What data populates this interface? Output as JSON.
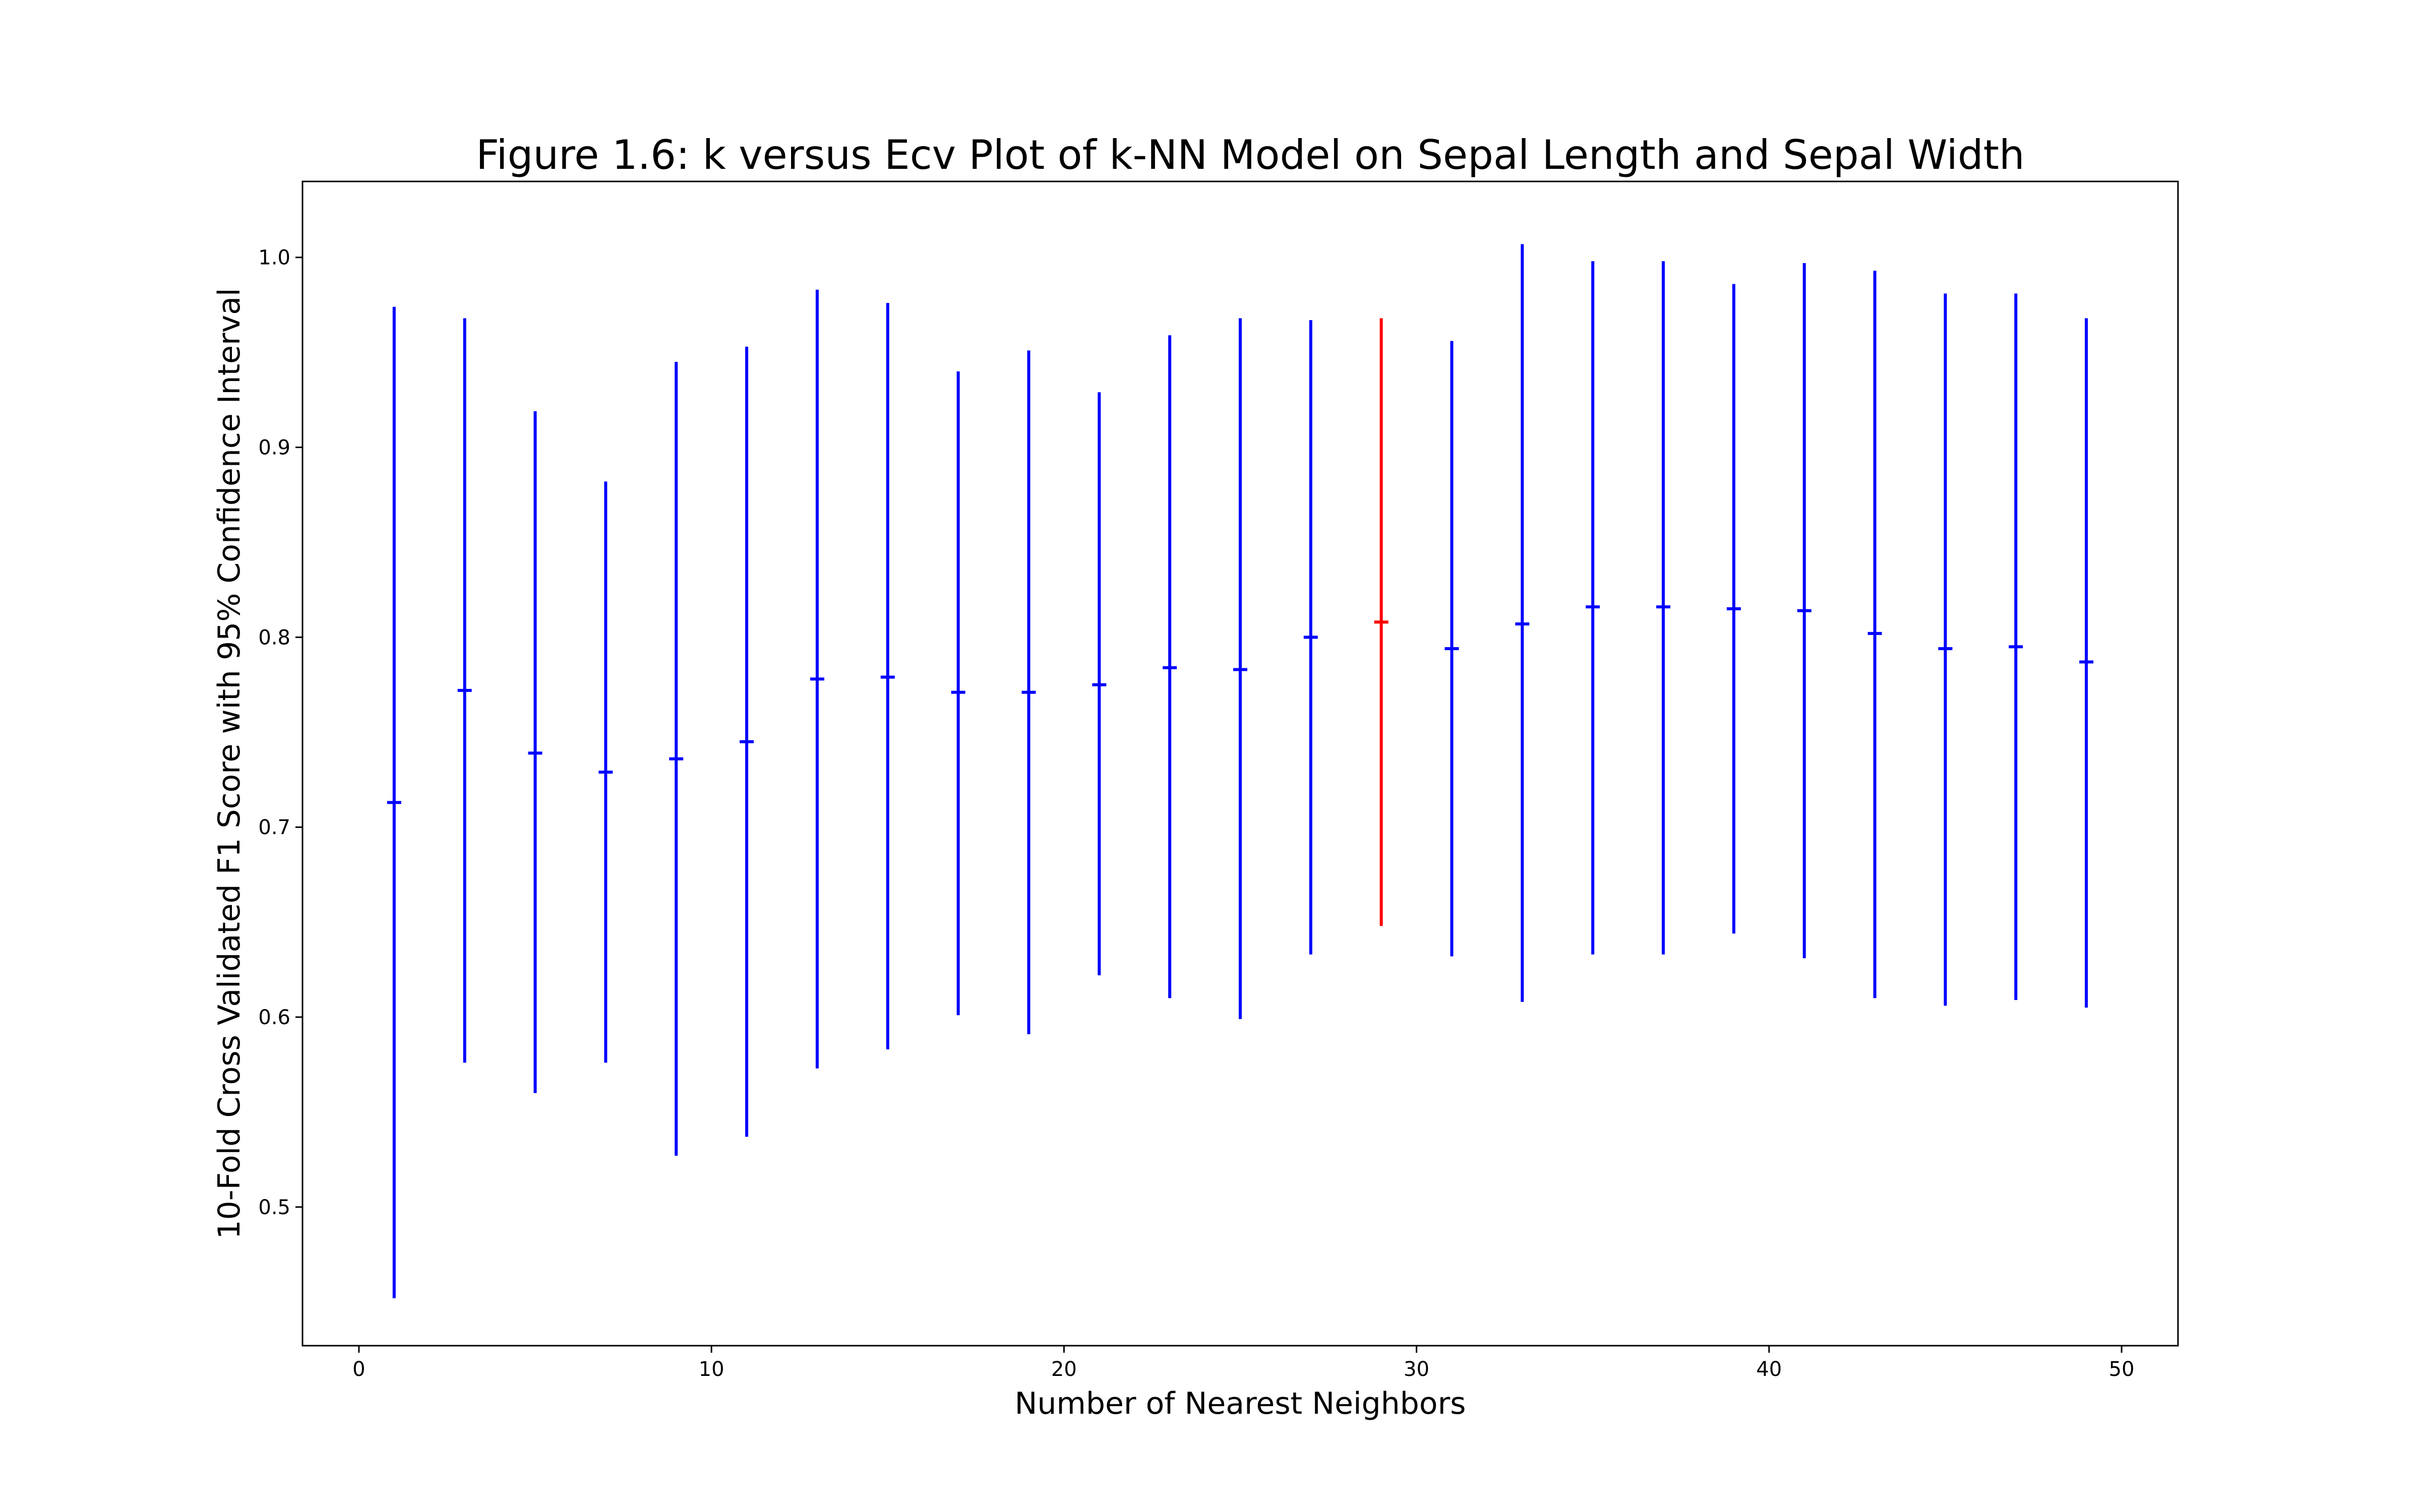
{
  "chart_data": {
    "type": "errorbar",
    "title": "Figure 1.6: k versus Ecv Plot of k-NN Model on Sepal Length and Sepal Width",
    "xlabel": "Number of Nearest Neighbors",
    "ylabel": "10-Fold Cross Validated F1 Score with 95% Confidence Interval",
    "xlim": [
      -1.6,
      51.6
    ],
    "ylim": [
      0.427,
      1.04
    ],
    "x_ticks": [
      0,
      10,
      20,
      30,
      40,
      50
    ],
    "y_ticks": [
      0.5,
      0.6,
      0.7,
      0.8,
      0.9,
      1.0
    ],
    "x_tick_labels": [
      "0",
      "10",
      "20",
      "30",
      "40",
      "50"
    ],
    "y_tick_labels": [
      "0.5",
      "0.6",
      "0.7",
      "0.8",
      "0.9",
      "1.0"
    ],
    "grid": false,
    "default_color": "#0000ff",
    "highlight_color": "#ff0000",
    "points": [
      {
        "k": 1,
        "mean": 0.713,
        "lower": 0.452,
        "upper": 0.974
      },
      {
        "k": 3,
        "mean": 0.772,
        "lower": 0.576,
        "upper": 0.968
      },
      {
        "k": 5,
        "mean": 0.739,
        "lower": 0.56,
        "upper": 0.919
      },
      {
        "k": 7,
        "mean": 0.729,
        "lower": 0.576,
        "upper": 0.882
      },
      {
        "k": 9,
        "mean": 0.736,
        "lower": 0.527,
        "upper": 0.945
      },
      {
        "k": 11,
        "mean": 0.745,
        "lower": 0.537,
        "upper": 0.953
      },
      {
        "k": 13,
        "mean": 0.778,
        "lower": 0.573,
        "upper": 0.983
      },
      {
        "k": 15,
        "mean": 0.779,
        "lower": 0.583,
        "upper": 0.976
      },
      {
        "k": 17,
        "mean": 0.771,
        "lower": 0.601,
        "upper": 0.94
      },
      {
        "k": 19,
        "mean": 0.771,
        "lower": 0.591,
        "upper": 0.951
      },
      {
        "k": 21,
        "mean": 0.775,
        "lower": 0.622,
        "upper": 0.929
      },
      {
        "k": 23,
        "mean": 0.784,
        "lower": 0.61,
        "upper": 0.959
      },
      {
        "k": 25,
        "mean": 0.783,
        "lower": 0.599,
        "upper": 0.968
      },
      {
        "k": 27,
        "mean": 0.8,
        "lower": 0.633,
        "upper": 0.967
      },
      {
        "k": 29,
        "mean": 0.808,
        "lower": 0.648,
        "upper": 0.968,
        "highlight": true
      },
      {
        "k": 31,
        "mean": 0.794,
        "lower": 0.632,
        "upper": 0.956
      },
      {
        "k": 33,
        "mean": 0.807,
        "lower": 0.608,
        "upper": 1.007
      },
      {
        "k": 35,
        "mean": 0.816,
        "lower": 0.633,
        "upper": 0.998
      },
      {
        "k": 37,
        "mean": 0.816,
        "lower": 0.633,
        "upper": 0.998
      },
      {
        "k": 39,
        "mean": 0.815,
        "lower": 0.644,
        "upper": 0.986
      },
      {
        "k": 41,
        "mean": 0.814,
        "lower": 0.631,
        "upper": 0.997
      },
      {
        "k": 43,
        "mean": 0.802,
        "lower": 0.61,
        "upper": 0.993
      },
      {
        "k": 45,
        "mean": 0.794,
        "lower": 0.606,
        "upper": 0.981
      },
      {
        "k": 47,
        "mean": 0.795,
        "lower": 0.609,
        "upper": 0.981
      },
      {
        "k": 49,
        "mean": 0.787,
        "lower": 0.605,
        "upper": 0.968
      }
    ]
  }
}
